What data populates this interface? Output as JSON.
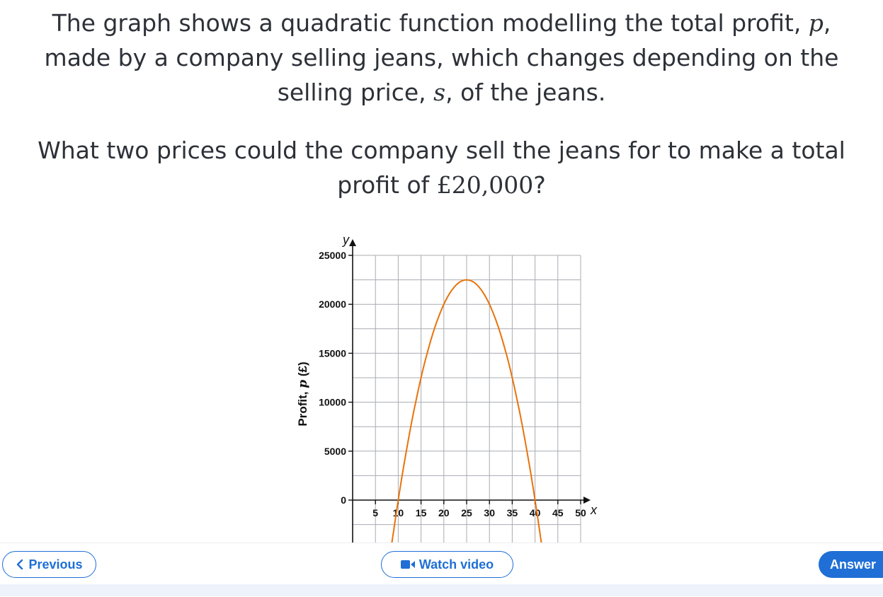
{
  "question": {
    "line1_text": "The graph shows a quadratic function modelling the total profit, ",
    "line1_var": "p",
    "line1_end": ",",
    "line2": "made by a company selling jeans, which changes depending on the",
    "line3_text": "selling price, ",
    "line3_var": "s",
    "line3_end": ", of the jeans.",
    "q2_line1": "What two prices could the company sell the jeans for to make a total",
    "q2_line2_text": "profit of ",
    "q2_line2_amount": "£20,000",
    "q2_line2_end": "?"
  },
  "chart_data": {
    "type": "line",
    "ylabel_text": "Profit, ",
    "ylabel_var": "p",
    "ylabel_unit": " (£)",
    "x_axis_symbol": "x",
    "y_axis_symbol": "y",
    "xlim": [
      0,
      50
    ],
    "ylim": [
      -7500,
      25000
    ],
    "x_ticks": [
      5,
      10,
      15,
      20,
      25,
      30,
      35,
      40,
      45,
      50
    ],
    "y_ticks": [
      0,
      5000,
      10000,
      15000,
      20000,
      25000
    ],
    "grid": true,
    "series": [
      {
        "function": "p = -100(s - 10)(s - 40)",
        "roots": [
          10,
          40
        ],
        "vertex": [
          25,
          22500
        ],
        "color": "#e8730c"
      }
    ]
  },
  "footer": {
    "previous_label": "Previous",
    "watch_video_label": "Watch video",
    "answer_label": "Answer"
  },
  "colors": {
    "accent": "#1f6fd6",
    "curve": "#e8730c",
    "text": "#2d3138"
  }
}
